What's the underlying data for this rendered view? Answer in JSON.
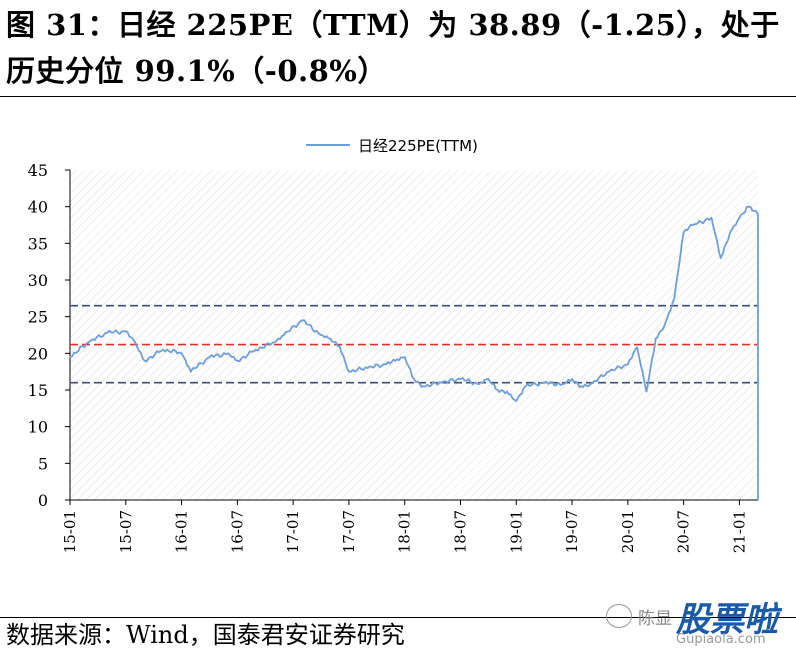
{
  "header": {
    "title": "图 31：日经 225PE（TTM）为 38.89（-1.25），处于历史分位 99.1%（-0.8%）"
  },
  "footer": {
    "source": "数据来源：Wind，国泰君安证券研究"
  },
  "watermark": {
    "name": "陈显",
    "brand": "股票啦",
    "url": "Gupiaola.com"
  },
  "colors": {
    "series": "#6f9fd8",
    "mean": "#e0302c",
    "band": "#3c4e78",
    "axis": "#000000"
  },
  "chart_data": {
    "type": "line",
    "title": "",
    "xlabel": "",
    "ylabel": "",
    "ylim": [
      0,
      45
    ],
    "yticks": [
      0,
      5,
      10,
      15,
      20,
      25,
      30,
      35,
      40,
      45
    ],
    "xticks": [
      "15-01",
      "15-07",
      "16-01",
      "16-07",
      "17-01",
      "17-07",
      "18-01",
      "18-07",
      "19-01",
      "19-07",
      "20-01",
      "20-07",
      "21-01"
    ],
    "x_range": [
      "2015-01",
      "2021-03"
    ],
    "grid": false,
    "legend": "top-center",
    "series": [
      {
        "name": "日经225PE(TTM)",
        "x": [
          "2015-01",
          "2015-03",
          "2015-05",
          "2015-07",
          "2015-08",
          "2015-09",
          "2015-11",
          "2016-01",
          "2016-02",
          "2016-04",
          "2016-06",
          "2016-07",
          "2016-09",
          "2016-11",
          "2016-12",
          "2017-02",
          "2017-04",
          "2017-05",
          "2017-06",
          "2017-07",
          "2017-09",
          "2017-11",
          "2017-12",
          "2018-01",
          "2018-02",
          "2018-03",
          "2018-05",
          "2018-07",
          "2018-09",
          "2018-10",
          "2018-11",
          "2018-12",
          "2019-01",
          "2019-02",
          "2019-04",
          "2019-06",
          "2019-07",
          "2019-08",
          "2019-09",
          "2019-11",
          "2020-01",
          "2020-02",
          "2020-03",
          "2020-04",
          "2020-05",
          "2020-06",
          "2020-07",
          "2020-08",
          "2020-10",
          "2020-11",
          "2020-12",
          "2021-01",
          "2021-02",
          "2021-03"
        ],
        "values": [
          19.5,
          21.5,
          22.8,
          23.0,
          21.5,
          19.0,
          20.5,
          20.0,
          17.5,
          19.5,
          20.0,
          19.0,
          20.5,
          21.5,
          22.5,
          24.5,
          22.5,
          22.0,
          21.0,
          17.5,
          18.0,
          18.5,
          19.0,
          19.5,
          16.5,
          15.5,
          16.0,
          16.5,
          15.8,
          16.5,
          15.0,
          14.8,
          13.5,
          15.5,
          16.0,
          15.8,
          16.5,
          15.5,
          15.8,
          17.5,
          18.5,
          20.8,
          14.8,
          22.0,
          24.0,
          27.5,
          36.5,
          37.5,
          38.5,
          33.0,
          36.5,
          38.5,
          40.0,
          38.89
        ]
      }
    ],
    "reference_lines": [
      {
        "role": "mean",
        "value": 21.2
      },
      {
        "role": "upper",
        "value": 26.5
      },
      {
        "role": "lower",
        "value": 16.0
      }
    ]
  }
}
